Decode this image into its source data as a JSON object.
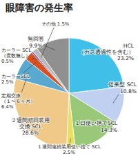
{
  "chart_data": {
    "type": "pie",
    "title": "眼障害の発生率",
    "categories": [
      "HCL\n（ガス透過性を含む）\n23.2%",
      "従来型 SCL\n10.8%",
      "１日使い捨てSCL\n14.3%",
      "１週間連続装用使い捨て SCL\n2.5%",
      "２週間頻回装用\n交換 SCL\n28.6%",
      "定期交換\n（１〜６ヶ月）\n6.4%",
      "カーラーSCL\n2.5%",
      "カーラー SCL\n（度数無し）\n0.5%",
      "その他 1.5%",
      "無回答\n9.9%"
    ],
    "values": [
      23.2,
      10.8,
      14.3,
      2.5,
      28.6,
      6.4,
      2.5,
      0.5,
      1.5,
      9.9
    ],
    "colors": [
      "#40c0e8",
      "#c0d0f0",
      "#98c878",
      "#e8e060",
      "#f0c888",
      "#58a8d0",
      "#d85020",
      "#8050a8",
      "#b8b8b8",
      "#909090"
    ]
  }
}
